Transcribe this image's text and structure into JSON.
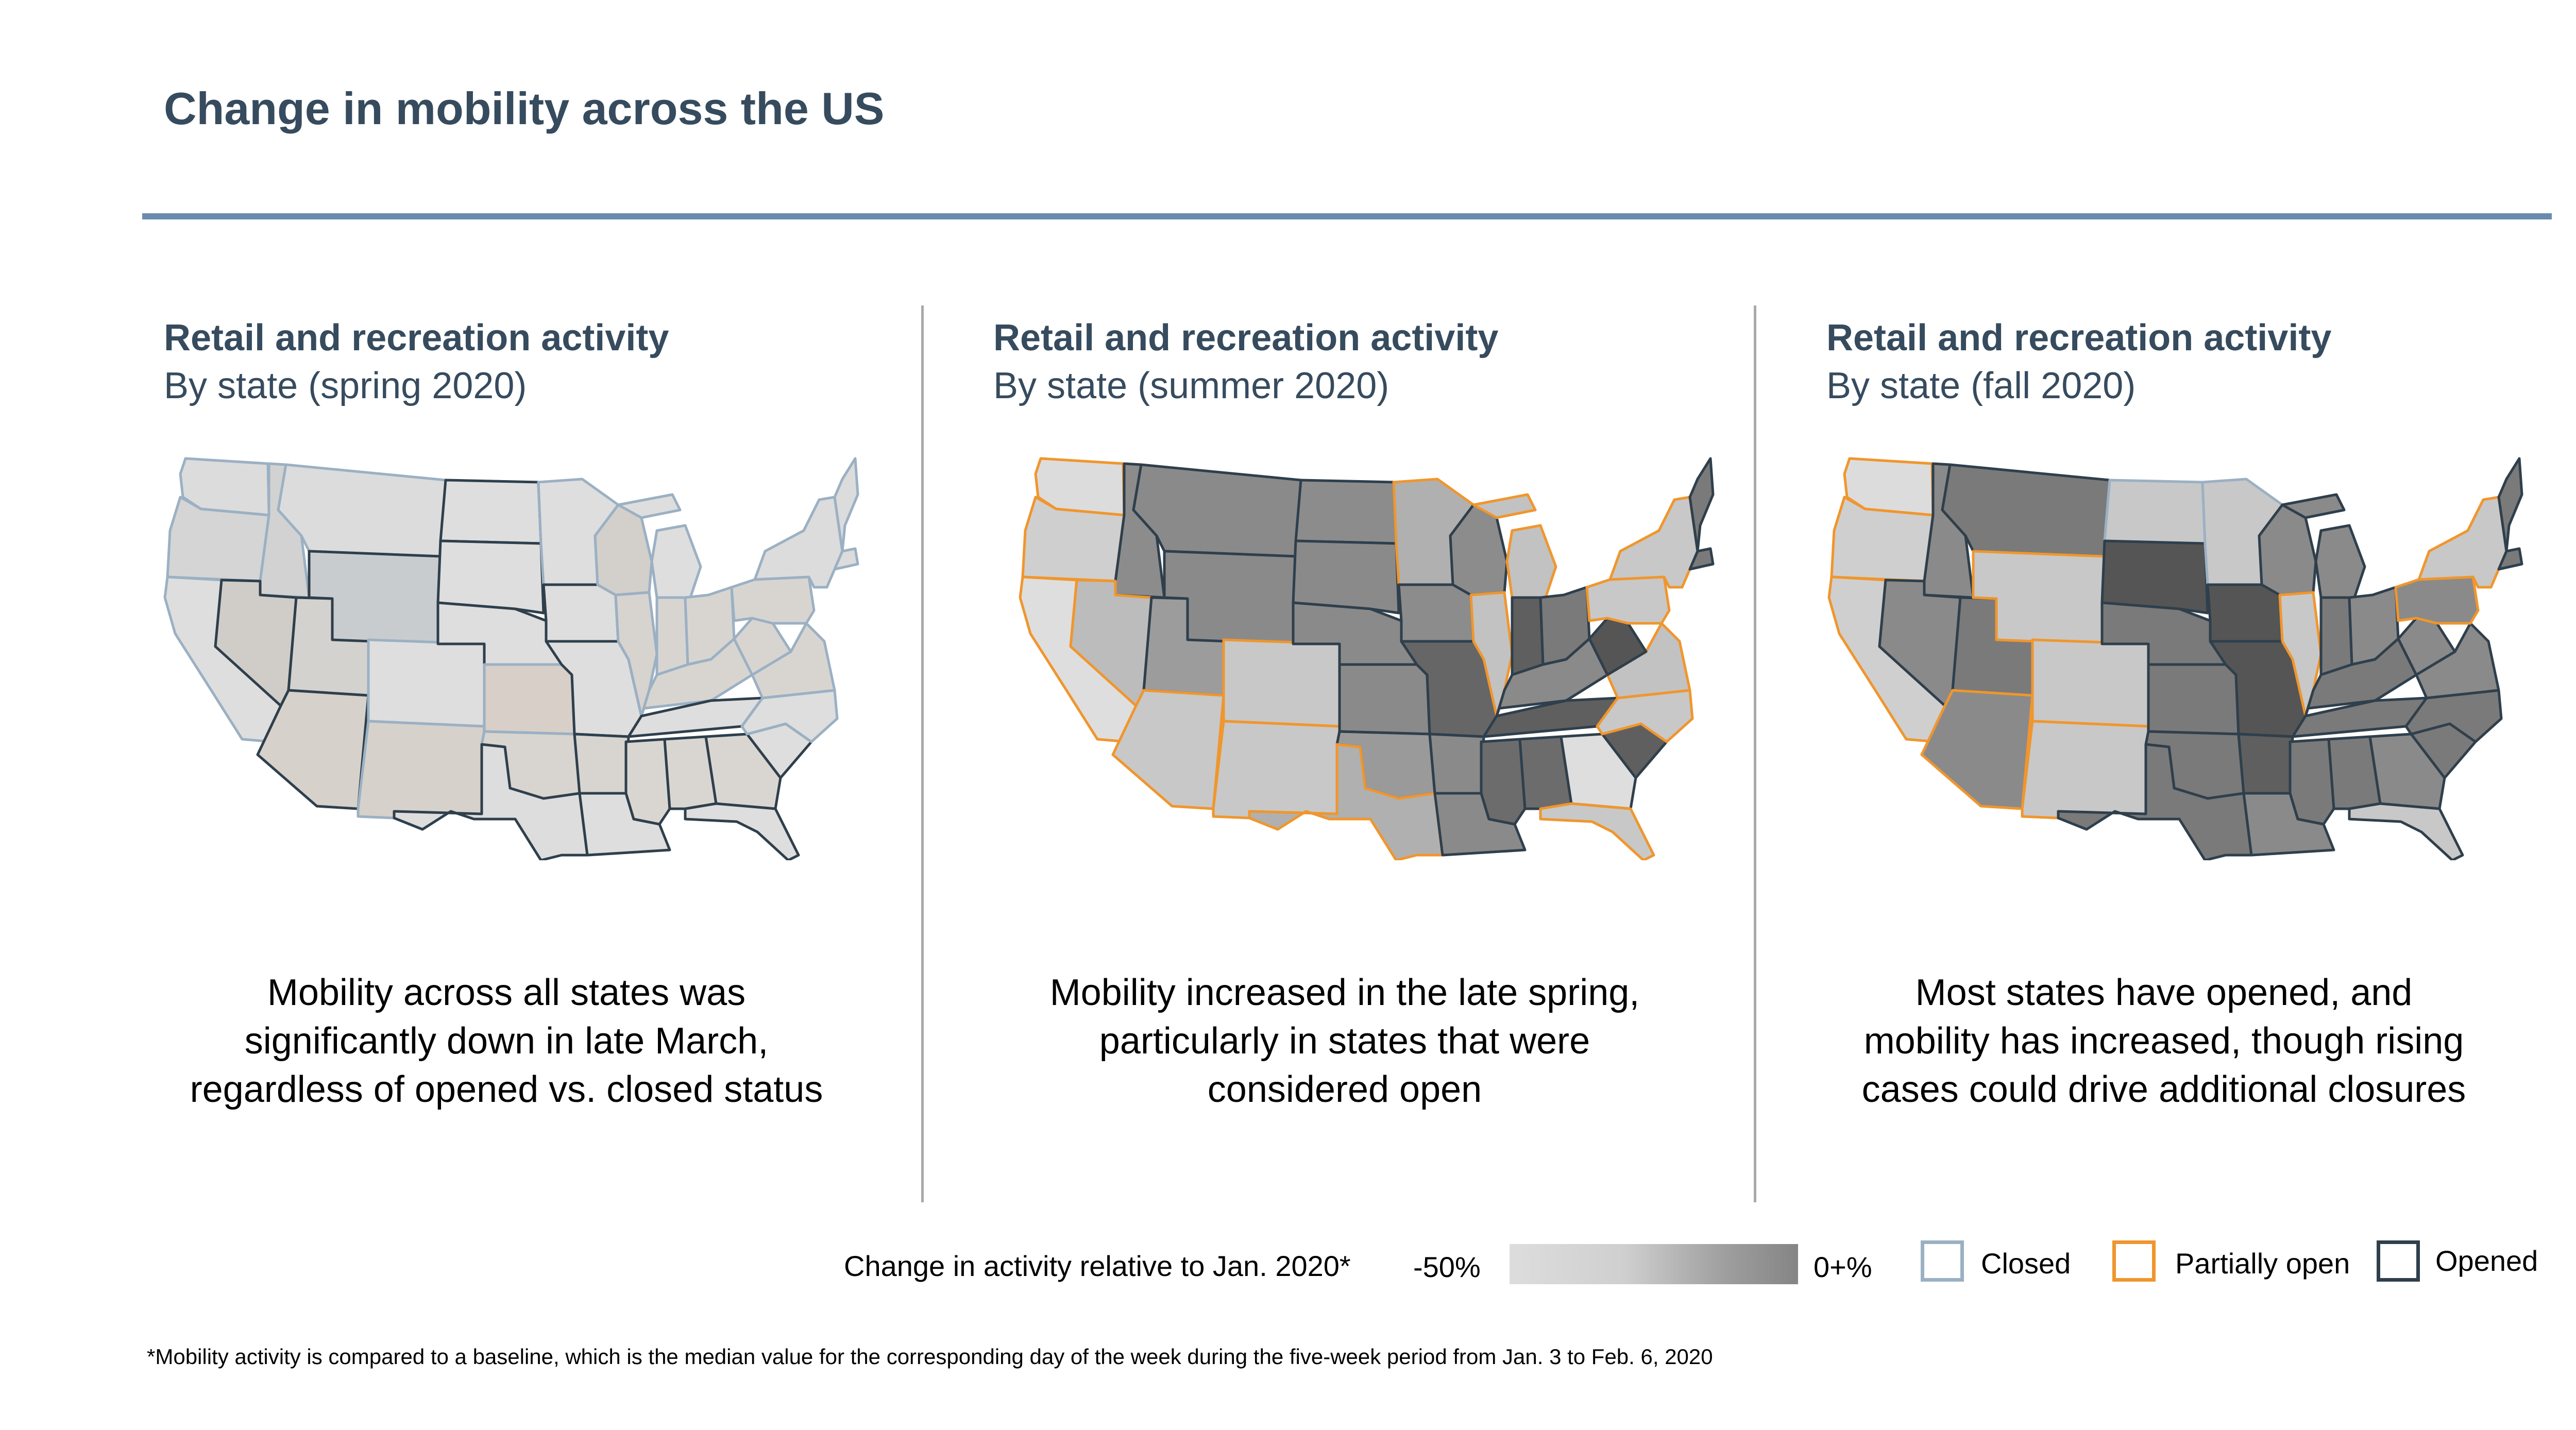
{
  "page": {
    "title": "Change in mobility across the US"
  },
  "colors": {
    "title": "#364b5e",
    "rule": "#6a8bad",
    "closed_border": "#9bb0c3",
    "partial_border": "#f0962d",
    "opened_border": "#2f3f4c",
    "scale_low": "#dddddd",
    "scale_high": "#7f7f7f"
  },
  "panels": [
    {
      "heading": "Retail and recreation activity",
      "subheading": "By state (spring 2020)",
      "caption": "Mobility across all states was\nsignificantly down in late March,\nregardless of opened vs. closed status",
      "states": {
        "wa": {
          "status": "closed",
          "shade": "#dcdcdc"
        },
        "or": {
          "status": "closed",
          "shade": "#d5d5d5"
        },
        "ca": {
          "status": "closed",
          "shade": "#dedede"
        },
        "id": {
          "status": "closed",
          "shade": "#d2d2d2"
        },
        "nv": {
          "status": "opened",
          "shade": "#d0cdc9"
        },
        "ut": {
          "status": "opened",
          "shade": "#d4d2cf"
        },
        "az": {
          "status": "opened",
          "shade": "#d6d1cb"
        },
        "mt": {
          "status": "closed",
          "shade": "#dcdcdc"
        },
        "wy": {
          "status": "opened",
          "shade": "#c9ccce"
        },
        "co": {
          "status": "closed",
          "shade": "#dedede"
        },
        "nm": {
          "status": "closed",
          "shade": "#d6d1cb"
        },
        "nd": {
          "status": "opened",
          "shade": "#dedede"
        },
        "sd": {
          "status": "opened",
          "shade": "#dedede"
        },
        "ne": {
          "status": "opened",
          "shade": "#dedede"
        },
        "ks": {
          "status": "closed",
          "shade": "#d7cfc8"
        },
        "ok": {
          "status": "closed",
          "shade": "#d8d4cf"
        },
        "tx": {
          "status": "opened",
          "shade": "#dddddd"
        },
        "mn": {
          "status": "closed",
          "shade": "#dedede"
        },
        "ia": {
          "status": "opened",
          "shade": "#dedede"
        },
        "mo": {
          "status": "opened",
          "shade": "#dedede"
        },
        "ar": {
          "status": "opened",
          "shade": "#d8d4cf"
        },
        "la": {
          "status": "opened",
          "shade": "#dedede"
        },
        "wi": {
          "status": "closed",
          "shade": "#d3cfca"
        },
        "il": {
          "status": "closed",
          "shade": "#d7d3cf"
        },
        "mi": {
          "status": "closed",
          "shade": "#dedede"
        },
        "in": {
          "status": "closed",
          "shade": "#d8d5d1"
        },
        "oh": {
          "status": "closed",
          "shade": "#d8d5d1"
        },
        "ky": {
          "status": "closed",
          "shade": "#d8d5d1"
        },
        "tn": {
          "status": "opened",
          "shade": "#dedede"
        },
        "ms": {
          "status": "opened",
          "shade": "#d9d6d2"
        },
        "al": {
          "status": "opened",
          "shade": "#d9d6d2"
        },
        "ga": {
          "status": "opened",
          "shade": "#d9d6d2"
        },
        "fl": {
          "status": "opened",
          "shade": "#dedede"
        },
        "sc": {
          "status": "opened",
          "shade": "#dedede"
        },
        "nc": {
          "status": "closed",
          "shade": "#dedede"
        },
        "va": {
          "status": "closed",
          "shade": "#d8d5d1"
        },
        "wv": {
          "status": "closed",
          "shade": "#d8d5d1"
        },
        "pa": {
          "status": "closed",
          "shade": "#d8d5d1"
        },
        "ny": {
          "status": "closed",
          "shade": "#dcdcdc"
        },
        "ne_states": {
          "status": "closed",
          "shade": "#dcdcdc"
        }
      }
    },
    {
      "heading": "Retail and recreation activity",
      "subheading": "By state (summer 2020)",
      "caption": "Mobility increased in the late spring,\nparticularly in states that were\nconsidered open",
      "states": {
        "wa": {
          "status": "partial",
          "shade": "#dcdcdc"
        },
        "or": {
          "status": "partial",
          "shade": "#cfcfcf"
        },
        "ca": {
          "status": "partial",
          "shade": "#dedede"
        },
        "id": {
          "status": "opened",
          "shade": "#8c8c8c"
        },
        "nv": {
          "status": "partial",
          "shade": "#bcbcbc"
        },
        "ut": {
          "status": "opened",
          "shade": "#9c9c9c"
        },
        "az": {
          "status": "partial",
          "shade": "#c8c8c8"
        },
        "mt": {
          "status": "opened",
          "shade": "#8a8a8a"
        },
        "wy": {
          "status": "opened",
          "shade": "#8a8a8a"
        },
        "co": {
          "status": "partial",
          "shade": "#c8c8c8"
        },
        "nm": {
          "status": "partial",
          "shade": "#c8c8c8"
        },
        "nd": {
          "status": "opened",
          "shade": "#8c8c8c"
        },
        "sd": {
          "status": "opened",
          "shade": "#8a8a8a"
        },
        "ne": {
          "status": "opened",
          "shade": "#8a8a8a"
        },
        "ks": {
          "status": "opened",
          "shade": "#8a8a8a"
        },
        "ok": {
          "status": "opened",
          "shade": "#9a9a9a"
        },
        "tx": {
          "status": "partial",
          "shade": "#b0b0b0"
        },
        "mn": {
          "status": "partial",
          "shade": "#b0b0b0"
        },
        "ia": {
          "status": "opened",
          "shade": "#8c8c8c"
        },
        "mo": {
          "status": "opened",
          "shade": "#666666"
        },
        "ar": {
          "status": "opened",
          "shade": "#8a8a8a"
        },
        "la": {
          "status": "opened",
          "shade": "#8a8a8a"
        },
        "wi": {
          "status": "opened",
          "shade": "#8c8c8c"
        },
        "il": {
          "status": "partial",
          "shade": "#c2c2c2"
        },
        "mi": {
          "status": "partial",
          "shade": "#c2c2c2"
        },
        "in": {
          "status": "opened",
          "shade": "#5f5f5f"
        },
        "oh": {
          "status": "opened",
          "shade": "#7a7a7a"
        },
        "ky": {
          "status": "opened",
          "shade": "#8a8a8a"
        },
        "tn": {
          "status": "opened",
          "shade": "#5f5f5f"
        },
        "ms": {
          "status": "opened",
          "shade": "#6c6c6c"
        },
        "al": {
          "status": "opened",
          "shade": "#6c6c6c"
        },
        "ga": {
          "status": "opened",
          "shade": "#dedede"
        },
        "fl": {
          "status": "partial",
          "shade": "#c8c8c8"
        },
        "sc": {
          "status": "opened",
          "shade": "#5f5f5f"
        },
        "nc": {
          "status": "partial",
          "shade": "#c8c8c8"
        },
        "va": {
          "status": "partial",
          "shade": "#c2c2c2"
        },
        "wv": {
          "status": "opened",
          "shade": "#555555"
        },
        "pa": {
          "status": "partial",
          "shade": "#c8c8c8"
        },
        "ny": {
          "status": "partial",
          "shade": "#c8c8c8"
        },
        "ne_states": {
          "status": "opened",
          "shade": "#7a7a7a"
        }
      }
    },
    {
      "heading": "Retail and recreation activity",
      "subheading": "By state (fall 2020)",
      "caption": "Most states have opened, and\nmobility has increased, though rising\ncases could drive additional closures",
      "states": {
        "wa": {
          "status": "partial",
          "shade": "#dcdcdc"
        },
        "or": {
          "status": "partial",
          "shade": "#cfcfcf"
        },
        "ca": {
          "status": "partial",
          "shade": "#cfcfcf"
        },
        "id": {
          "status": "opened",
          "shade": "#8a8a8a"
        },
        "nv": {
          "status": "opened",
          "shade": "#8a8a8a"
        },
        "ut": {
          "status": "opened",
          "shade": "#7a7a7a"
        },
        "az": {
          "status": "partial",
          "shade": "#8a8a8a"
        },
        "mt": {
          "status": "opened",
          "shade": "#7a7a7a"
        },
        "wy": {
          "status": "partial",
          "shade": "#c8c8c8"
        },
        "co": {
          "status": "partial",
          "shade": "#c8c8c8"
        },
        "nm": {
          "status": "partial",
          "shade": "#c8c8c8"
        },
        "nd": {
          "status": "closed",
          "shade": "#c8c8c8"
        },
        "sd": {
          "status": "opened",
          "shade": "#555555"
        },
        "ne": {
          "status": "opened",
          "shade": "#7a7a7a"
        },
        "ks": {
          "status": "opened",
          "shade": "#7a7a7a"
        },
        "ok": {
          "status": "opened",
          "shade": "#7a7a7a"
        },
        "tx": {
          "status": "opened",
          "shade": "#7a7a7a"
        },
        "mn": {
          "status": "closed",
          "shade": "#c8c8c8"
        },
        "ia": {
          "status": "opened",
          "shade": "#555555"
        },
        "mo": {
          "status": "opened",
          "shade": "#555555"
        },
        "ar": {
          "status": "opened",
          "shade": "#5f5f5f"
        },
        "la": {
          "status": "opened",
          "shade": "#8a8a8a"
        },
        "wi": {
          "status": "opened",
          "shade": "#8a8a8a"
        },
        "il": {
          "status": "partial",
          "shade": "#c8c8c8"
        },
        "mi": {
          "status": "opened",
          "shade": "#8a8a8a"
        },
        "in": {
          "status": "opened",
          "shade": "#7a7a7a"
        },
        "oh": {
          "status": "opened",
          "shade": "#8a8a8a"
        },
        "ky": {
          "status": "opened",
          "shade": "#7a7a7a"
        },
        "tn": {
          "status": "opened",
          "shade": "#7a7a7a"
        },
        "ms": {
          "status": "opened",
          "shade": "#7a7a7a"
        },
        "al": {
          "status": "opened",
          "shade": "#7a7a7a"
        },
        "ga": {
          "status": "opened",
          "shade": "#8a8a8a"
        },
        "fl": {
          "status": "opened",
          "shade": "#c8c8c8"
        },
        "sc": {
          "status": "opened",
          "shade": "#7a7a7a"
        },
        "nc": {
          "status": "opened",
          "shade": "#7a7a7a"
        },
        "va": {
          "status": "opened",
          "shade": "#8a8a8a"
        },
        "wv": {
          "status": "opened",
          "shade": "#8a8a8a"
        },
        "pa": {
          "status": "partial",
          "shade": "#8a8a8a"
        },
        "ny": {
          "status": "partial",
          "shade": "#c8c8c8"
        },
        "ne_states": {
          "status": "opened",
          "shade": "#7a7a7a"
        }
      }
    }
  ],
  "legend": {
    "scale_title": "Change in activity relative to Jan. 2020*",
    "scale_min": "-50%",
    "scale_max": "0+%",
    "statuses": [
      {
        "key": "closed",
        "label": "Closed"
      },
      {
        "key": "partial",
        "label": "Partially open"
      },
      {
        "key": "opened",
        "label": "Opened"
      }
    ]
  },
  "footnote": "*Mobility activity is compared to a baseline, which is the median value for the corresponding day of the week during the five-week period from Jan. 3 to Feb. 6, 2020"
}
